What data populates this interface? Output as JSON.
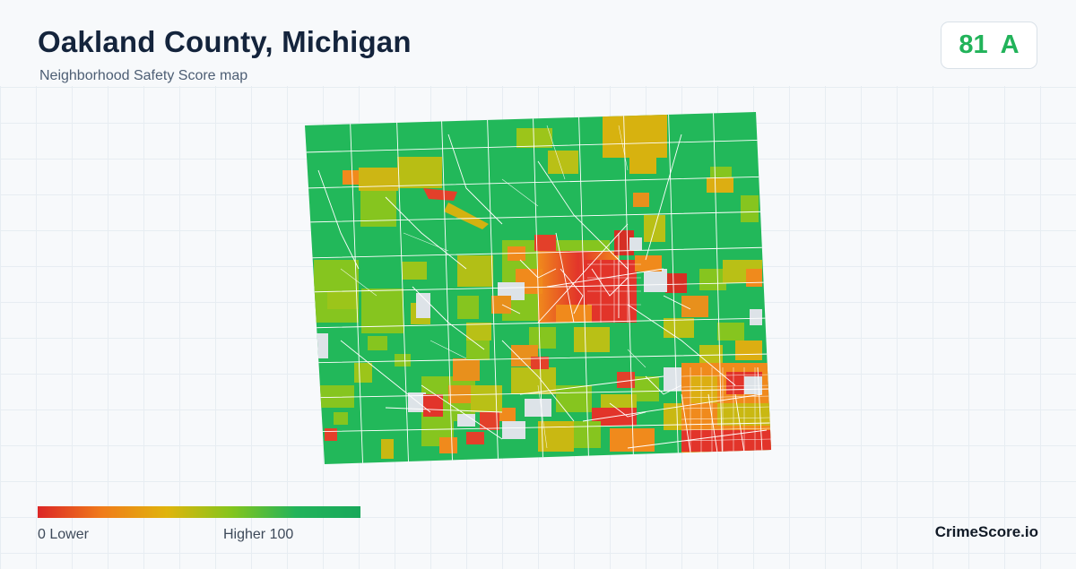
{
  "header": {
    "title": "Oakland County, Michigan",
    "subtitle": "Neighborhood Safety Score map"
  },
  "score": {
    "value": "81",
    "grade": "A",
    "color": "#22b35a"
  },
  "legend": {
    "low_label": "0  Lower",
    "high_label": "Higher  100",
    "scale_colors": [
      "#dc2626",
      "#f07c1a",
      "#e0b40c",
      "#84c51c",
      "#22b35a",
      "#18a85a"
    ]
  },
  "map": {
    "region": "Oakland County, Michigan",
    "palette": {
      "high": "#22b85a",
      "mid_high": "#86c51f",
      "mid": "#c9b812",
      "mid_low": "#f08a1c",
      "low": "#e2342a",
      "no_data": "#dde3e8",
      "border": "#ffffff"
    }
  },
  "brand": {
    "name": "CrimeScore.io"
  }
}
